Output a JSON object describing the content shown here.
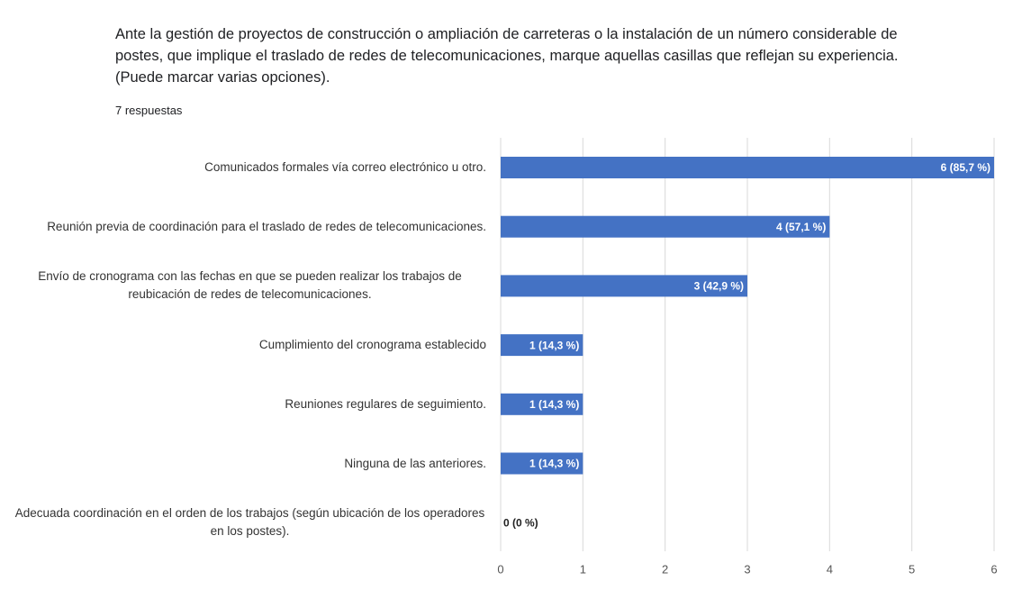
{
  "chart_data": {
    "type": "barh",
    "title": "Ante la gestión de proyectos de construcción o ampliación de carreteras o la instalación de un número considerable de postes, que implique el traslado de redes de telecomunicaciones, marque aquellas casillas que reflejan su experiencia. (Puede marcar varias opciones).",
    "subtitle": "7 respuestas",
    "categories": [
      "Comunicados formales vía correo electrónico u otro.",
      "Reunión previa de coordinación para el traslado de redes de telecomunicaciones.",
      "Envío de cronograma con las fechas en que se pueden realizar los trabajos de reubicación de redes de telecomunicaciones.",
      "Cumplimiento del cronograma establecido",
      "Reuniones regulares de seguimiento.",
      "Ninguna de las anteriores.",
      "Adecuada coordinación en el orden de los trabajos (según ubicación de los operadores en los postes)."
    ],
    "values": [
      6,
      4,
      3,
      1,
      1,
      1,
      0
    ],
    "value_labels": [
      "6 (85,7 %)",
      "4 (57,1 %)",
      "3 (42,9 %)",
      "1 (14,3 %)",
      "1 (14,3 %)",
      "1 (14,3 %)",
      "0 (0 %)"
    ],
    "color": "#4472c4",
    "xlim": [
      0,
      6
    ],
    "xticks": [
      0,
      1,
      2,
      3,
      4,
      5,
      6
    ],
    "grid": true
  }
}
